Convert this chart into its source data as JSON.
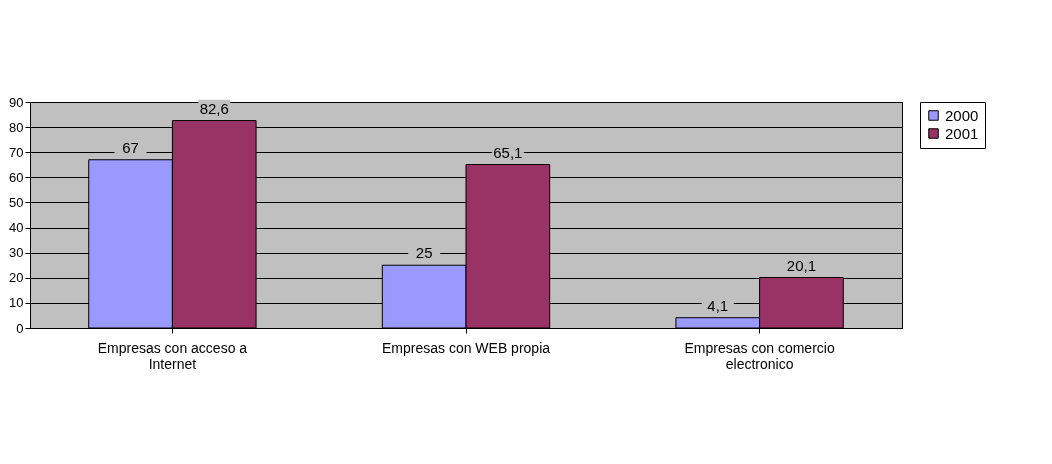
{
  "chart_data": {
    "type": "bar",
    "categories": [
      "Empresas con acceso a Internet",
      "Empresas con WEB  propia",
      "Empresas con comercio electronico"
    ],
    "series": [
      {
        "name": "2000",
        "color": "#9999ff",
        "values": [
          67,
          25,
          4.1
        ],
        "value_labels": [
          "67",
          "25",
          "4,1"
        ]
      },
      {
        "name": "2001",
        "color": "#993366",
        "values": [
          82.6,
          65.1,
          20.1
        ],
        "value_labels": [
          "82,6",
          "65,1",
          "20,1"
        ]
      }
    ],
    "ylim": [
      0,
      90
    ],
    "yticks": [
      0,
      10,
      20,
      30,
      40,
      50,
      60,
      70,
      80,
      90
    ],
    "grid": "y",
    "legend": "right"
  }
}
